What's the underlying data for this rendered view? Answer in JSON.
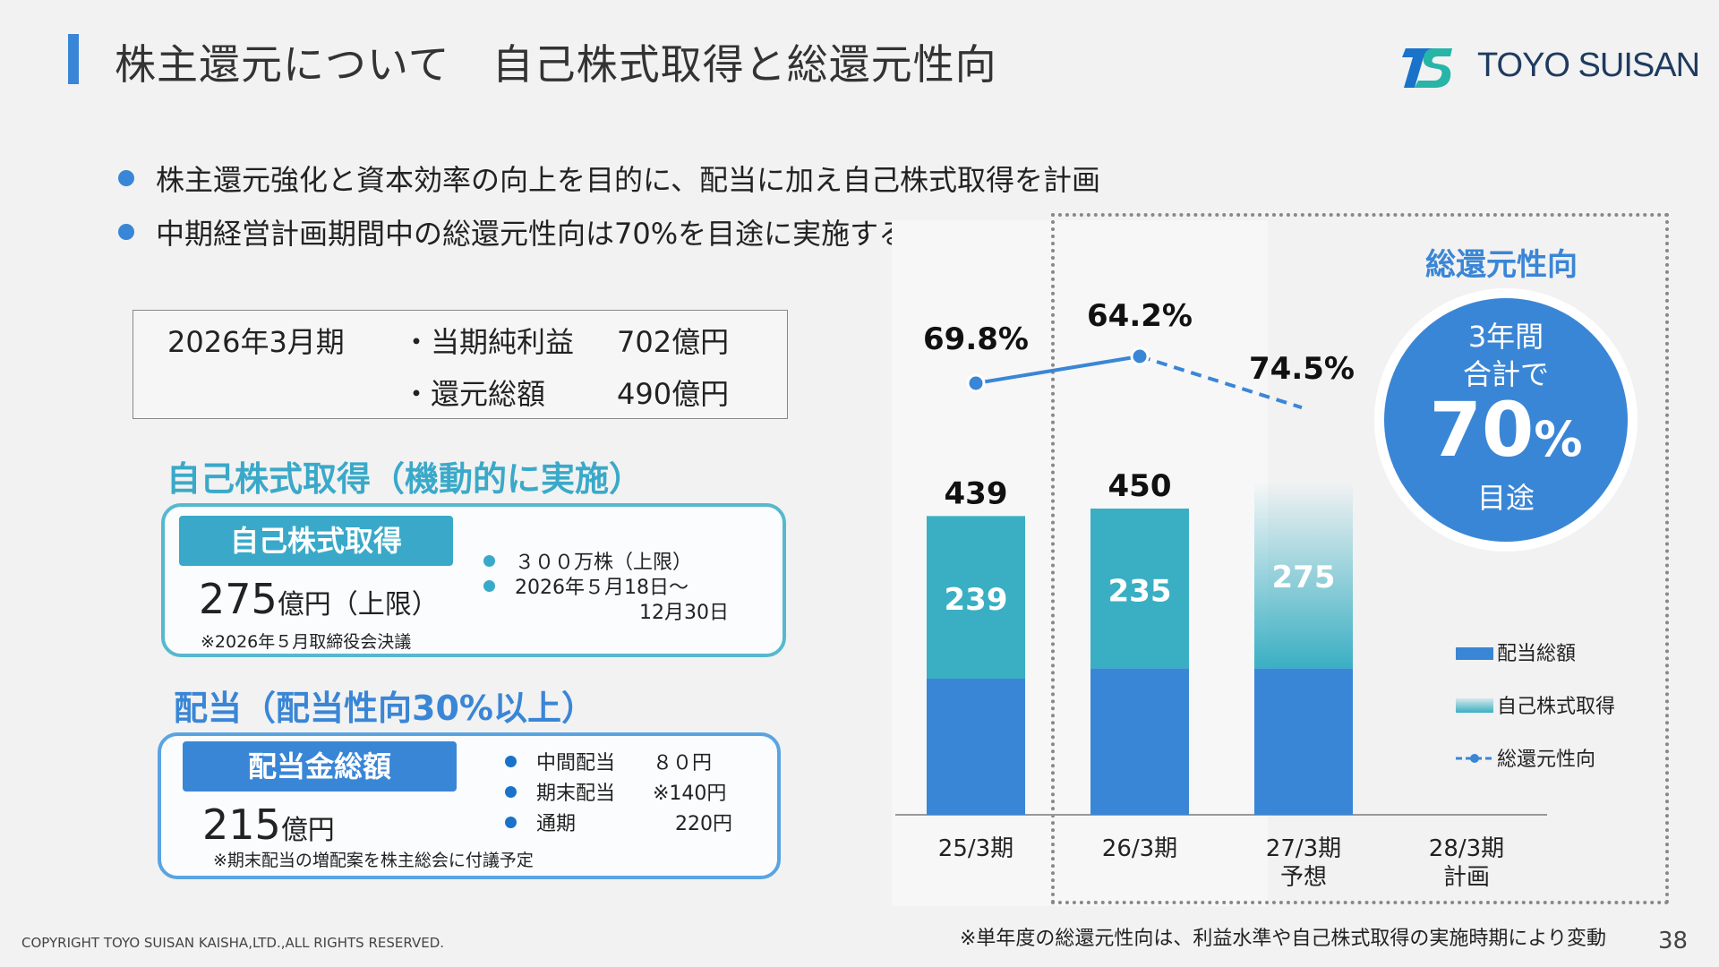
{
  "header": {
    "title": "株主還元について　自己株式取得と総還元性向",
    "brand_name": "TOYO SUISAN"
  },
  "bullets": [
    "株主還元強化と資本効率の向上を目的に、配当に加え自己株式取得を計画",
    "中期経営計画期間中の総還元性向は70%を目途に実施する"
  ],
  "summary": {
    "period": "2026年3月期",
    "net_income_label": "・当期純利益",
    "net_income_value": "702億円",
    "total_return_label": "・還元総額",
    "total_return_value": "490億円"
  },
  "buyback": {
    "heading": "自己株式取得（機動的に実施）",
    "label": "自己株式取得",
    "amount": "275",
    "unit": "億円（上限）",
    "note": "※2026年５月取締役会決議",
    "details": [
      "３００万株（上限）",
      "2026年５月18日～",
      "12月30日"
    ]
  },
  "dividend": {
    "heading": "配当（配当性向30%以上）",
    "label": "配当金総額",
    "amount": "215",
    "unit": "億円",
    "note": "※期末配当の増配案を株主総会に付議予定",
    "rows": [
      {
        "label": "中間配当",
        "value": "８０円"
      },
      {
        "label": "期末配当",
        "value": "※140円"
      },
      {
        "label": "通期",
        "value": "220円"
      }
    ]
  },
  "target": {
    "heading": "総還元性向",
    "line1": "3年間",
    "line2": "合計で",
    "value": "70",
    "pct": "%",
    "line3": "目途"
  },
  "chart_data": {
    "type": "bar",
    "categories": [
      "25/3期",
      "26/3期",
      "27/3期",
      "28/3期"
    ],
    "category_sublabels": [
      "",
      "",
      "予想",
      "計画"
    ],
    "series": [
      {
        "name": "配当総額",
        "values": [
          200,
          215,
          215,
          null
        ],
        "color": "#3a86d6"
      },
      {
        "name": "自己株式取得",
        "values": [
          239,
          235,
          275,
          null
        ],
        "color": "#3aafc3"
      }
    ],
    "totals": [
      439,
      450,
      null,
      null
    ],
    "stack_labels": [
      "239",
      "235",
      "275",
      null
    ],
    "payout_ratio": {
      "name": "総還元性向",
      "values": [
        69.8,
        64.2,
        74.5,
        null
      ],
      "labels": [
        "69.8%",
        "64.2%",
        "74.5%",
        ""
      ]
    },
    "legend": [
      "配当総額",
      "自己株式取得",
      "総還元性向"
    ],
    "legend_position": "right",
    "ylim": [
      0,
      520
    ]
  },
  "footer": {
    "copyright": "COPYRIGHT TOYO SUISAN KAISHA,LTD.,ALL RIGHTS RESERVED.",
    "footnote": "※単年度の総還元性向は、利益水準や自己株式取得の実施時期により変動",
    "page_number": "38"
  }
}
